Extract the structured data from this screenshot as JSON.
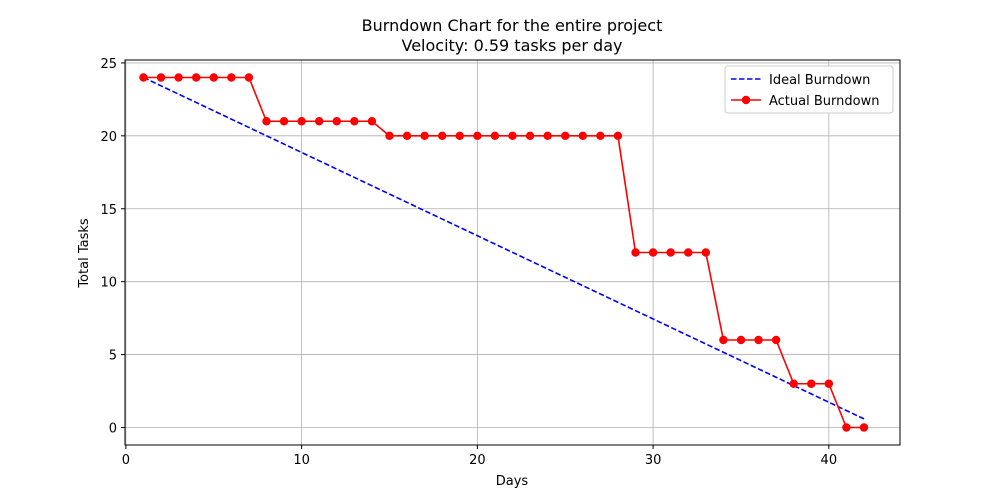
{
  "chart_data": {
    "type": "line",
    "title": "Burndown Chart for the entire project",
    "subtitle": "Velocity: 0.59 tasks per day",
    "xlabel": "Days",
    "ylabel": "Total Tasks",
    "xlim": [
      -0.05,
      44.05
    ],
    "ylim": [
      -1.2,
      25.2
    ],
    "xticks": [
      0,
      10,
      20,
      30,
      40
    ],
    "yticks": [
      0,
      5,
      10,
      15,
      20,
      25
    ],
    "grid": true,
    "legend_position": "top-right",
    "series": [
      {
        "name": "Ideal Burndown",
        "style": "dashed",
        "color": "#0000ff",
        "x": [
          1,
          42
        ],
        "y": [
          24,
          0.59
        ]
      },
      {
        "name": "Actual Burndown",
        "style": "solid-with-markers",
        "color": "#ff0000",
        "x": [
          1,
          2,
          3,
          4,
          5,
          6,
          7,
          8,
          9,
          10,
          11,
          12,
          13,
          14,
          15,
          16,
          17,
          18,
          19,
          20,
          21,
          22,
          23,
          24,
          25,
          26,
          27,
          28,
          29,
          30,
          31,
          32,
          33,
          34,
          35,
          36,
          37,
          38,
          39,
          40,
          41,
          42
        ],
        "y": [
          24,
          24,
          24,
          24,
          24,
          24,
          24,
          21,
          21,
          21,
          21,
          21,
          21,
          21,
          20,
          20,
          20,
          20,
          20,
          20,
          20,
          20,
          20,
          20,
          20,
          20,
          20,
          20,
          12,
          12,
          12,
          12,
          12,
          6,
          6,
          6,
          6,
          3,
          3,
          3,
          0,
          0
        ]
      }
    ]
  }
}
